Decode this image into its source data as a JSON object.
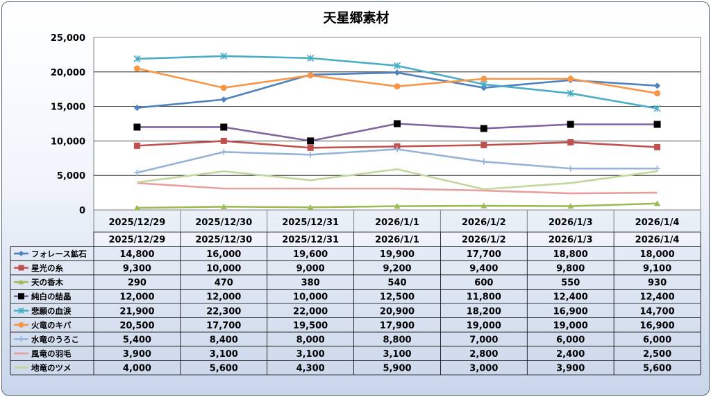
{
  "chart_data": {
    "type": "line",
    "title": "天星郷素材",
    "categories": [
      "2025/12/29",
      "2025/12/30",
      "2025/12/31",
      "2026/1/1",
      "2026/1/2",
      "2026/1/3",
      "2026/1/4"
    ],
    "ylim": [
      0,
      25000
    ],
    "yticks": [
      "25,000",
      "20,000",
      "15,000",
      "10,000",
      "5,000",
      "0"
    ],
    "ytick_values": [
      25000,
      20000,
      15000,
      10000,
      5000,
      0
    ],
    "grid": true,
    "legend": "data-table",
    "series": [
      {
        "name": "フォレース鉱石",
        "color": "#4f81bd",
        "marker": "diamond",
        "values": [
          14800,
          16000,
          19600,
          19900,
          17700,
          18800,
          18000
        ],
        "labels": [
          "14,800",
          "16,000",
          "19,600",
          "19,900",
          "17,700",
          "18,800",
          "18,000"
        ]
      },
      {
        "name": "星光の糸",
        "color": "#c0504d",
        "marker": "square",
        "values": [
          9300,
          10000,
          9000,
          9200,
          9400,
          9800,
          9100
        ],
        "labels": [
          "9,300",
          "10,000",
          "9,000",
          "9,200",
          "9,400",
          "9,800",
          "9,100"
        ]
      },
      {
        "name": "天の香木",
        "color": "#9bbb59",
        "marker": "triangle",
        "values": [
          290,
          470,
          380,
          540,
          600,
          550,
          930
        ],
        "labels": [
          "290",
          "470",
          "380",
          "540",
          "600",
          "550",
          "930"
        ]
      },
      {
        "name": "純白の結晶",
        "color": "#8064a2",
        "marker": "square-black",
        "values": [
          12000,
          12000,
          10000,
          12500,
          11800,
          12400,
          12400
        ],
        "labels": [
          "12,000",
          "12,000",
          "10,000",
          "12,500",
          "11,800",
          "12,400",
          "12,400"
        ]
      },
      {
        "name": "悲願の血涙",
        "color": "#4bacc6",
        "marker": "star",
        "values": [
          21900,
          22300,
          22000,
          20900,
          18200,
          16900,
          14700
        ],
        "labels": [
          "21,900",
          "22,300",
          "22,000",
          "20,900",
          "18,200",
          "16,900",
          "14,700"
        ]
      },
      {
        "name": "火竜のキバ",
        "color": "#f79646",
        "marker": "circle",
        "values": [
          20500,
          17700,
          19500,
          17900,
          19000,
          19000,
          16900
        ],
        "labels": [
          "20,500",
          "17,700",
          "19,500",
          "17,900",
          "19,000",
          "19,000",
          "16,900"
        ]
      },
      {
        "name": "水竜のうろこ",
        "color": "#95b3d7",
        "marker": "plus",
        "values": [
          5400,
          8400,
          8000,
          8800,
          7000,
          6000,
          6000
        ],
        "labels": [
          "5,400",
          "8,400",
          "8,000",
          "8,800",
          "7,000",
          "6,000",
          "6,000"
        ]
      },
      {
        "name": "風竜の羽毛",
        "color": "#e6a0a0",
        "marker": "none",
        "values": [
          3900,
          3100,
          3100,
          3100,
          2800,
          2400,
          2500
        ],
        "labels": [
          "3,900",
          "3,100",
          "3,100",
          "3,100",
          "2,800",
          "2,400",
          "2,500"
        ]
      },
      {
        "name": "地竜のツメ",
        "color": "#c3d69b",
        "marker": "none",
        "values": [
          4000,
          5600,
          4300,
          5900,
          3000,
          3900,
          5600
        ],
        "labels": [
          "4,000",
          "5,600",
          "4,300",
          "5,900",
          "3,000",
          "3,900",
          "5,600"
        ]
      }
    ]
  }
}
